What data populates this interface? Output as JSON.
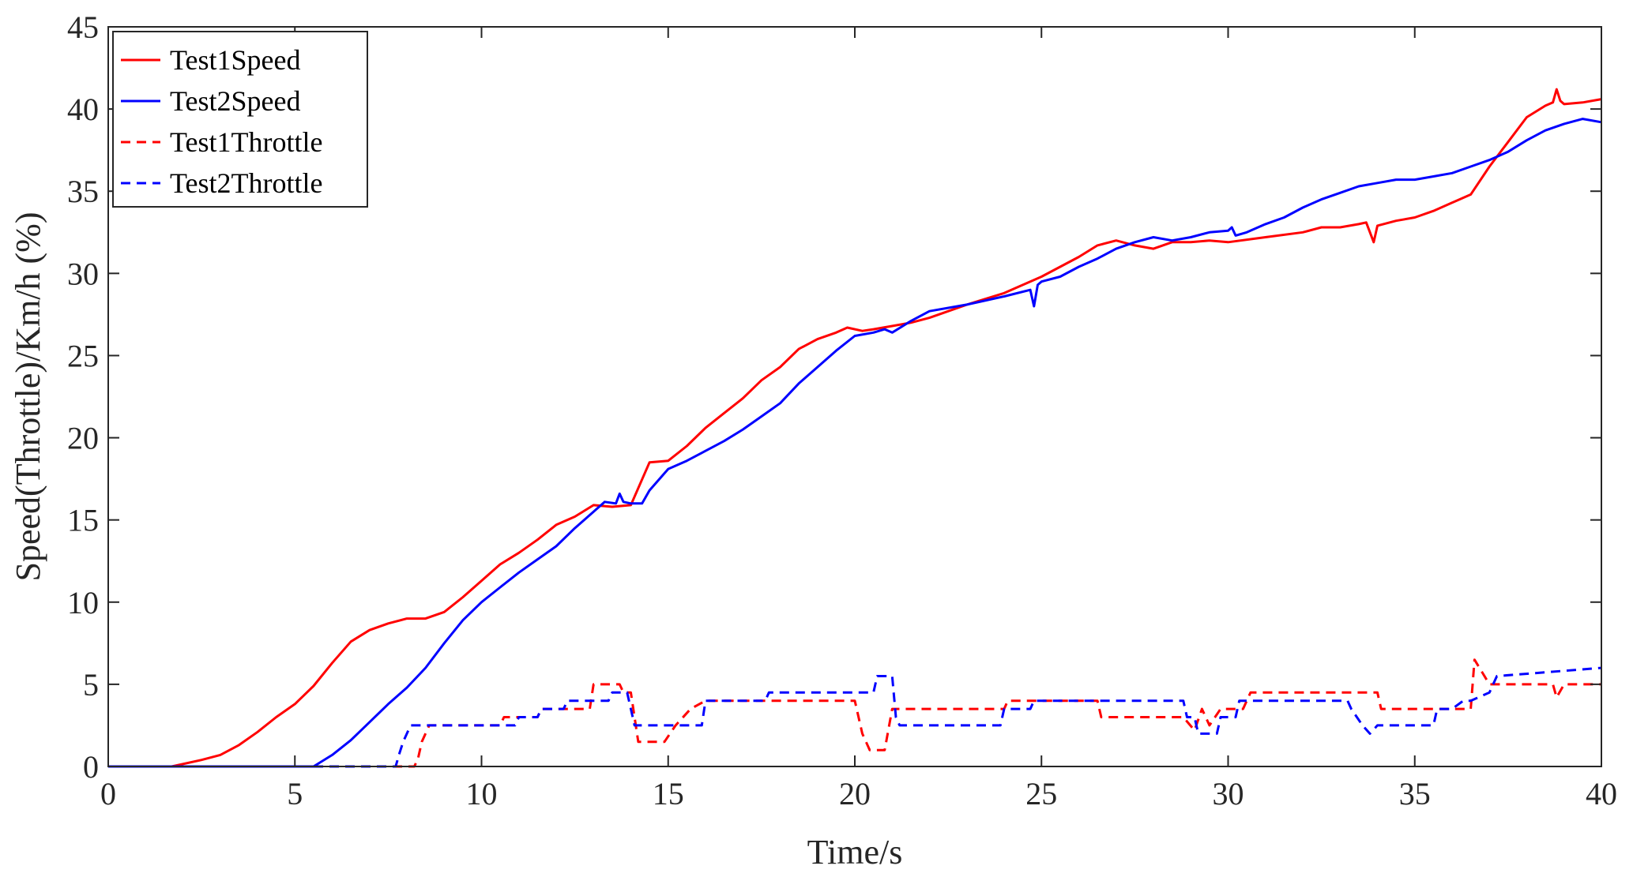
{
  "chart_data": {
    "type": "line",
    "title": "",
    "xlabel": "Time/s",
    "ylabel": "Speed(Throttle)/Km/h (%)",
    "xlim": [
      0,
      40
    ],
    "ylim": [
      0,
      45
    ],
    "xticks": [
      0,
      5,
      10,
      15,
      20,
      25,
      30,
      35,
      40
    ],
    "yticks": [
      0,
      5,
      10,
      15,
      20,
      25,
      30,
      35,
      40,
      45
    ],
    "grid": false,
    "legend_position": "top-left",
    "series": [
      {
        "name": "Test1Speed",
        "color": "#ff0000",
        "style": "solid",
        "x": [
          0,
          1.7,
          2.5,
          3,
          3.5,
          4,
          4.5,
          5,
          5.5,
          6,
          6.5,
          7,
          7.5,
          8,
          8.5,
          9,
          9.5,
          10,
          10.5,
          11,
          11.5,
          12,
          12.5,
          13,
          13.5,
          14,
          14.5,
          15,
          15.5,
          16,
          16.5,
          17,
          17.5,
          18,
          18.5,
          19,
          19.5,
          19.8,
          20.2,
          20.5,
          21,
          21.5,
          22,
          23,
          24,
          25,
          26,
          26.5,
          27,
          27.5,
          28,
          28.5,
          29,
          29.5,
          30,
          31,
          32,
          32.5,
          33,
          33.5,
          33.7,
          33.9,
          34,
          34.5,
          35,
          35.5,
          36,
          36.5,
          37,
          37.5,
          38,
          38.5,
          38.7,
          38.8,
          38.9,
          39,
          39.5,
          40
        ],
        "values": [
          0,
          0,
          0.4,
          0.7,
          1.3,
          2.1,
          3,
          3.8,
          4.9,
          6.3,
          7.6,
          8.3,
          8.7,
          9,
          9,
          9.4,
          10.3,
          11.3,
          12.3,
          13,
          13.8,
          14.7,
          15.2,
          15.9,
          15.8,
          15.9,
          18.5,
          18.6,
          19.5,
          20.6,
          21.5,
          22.4,
          23.5,
          24.3,
          25.4,
          26,
          26.4,
          26.7,
          26.5,
          26.6,
          26.8,
          27,
          27.3,
          28.1,
          28.8,
          29.8,
          31,
          31.7,
          32,
          31.7,
          31.5,
          31.9,
          31.9,
          32,
          31.9,
          32.2,
          32.5,
          32.8,
          32.8,
          33,
          33.1,
          31.9,
          32.9,
          33.2,
          33.4,
          33.8,
          34.3,
          34.8,
          36.5,
          38,
          39.5,
          40.2,
          40.4,
          41.2,
          40.5,
          40.3,
          40.4,
          40.6
        ]
      },
      {
        "name": "Test2Speed",
        "color": "#0000ff",
        "style": "solid",
        "x": [
          0,
          5.5,
          6,
          6.5,
          7,
          7.5,
          8,
          8.5,
          9,
          9.5,
          10,
          10.5,
          11,
          11.5,
          12,
          12.5,
          13,
          13.3,
          13.6,
          13.7,
          13.8,
          14,
          14.3,
          14.5,
          15,
          15.5,
          16,
          16.5,
          17,
          17.5,
          18,
          18.5,
          19,
          19.5,
          20,
          20.5,
          20.8,
          21,
          21.5,
          22,
          23,
          24,
          24.7,
          24.8,
          24.9,
          25,
          25.5,
          26,
          26.5,
          27,
          27.5,
          28,
          28.5,
          29,
          29.5,
          30,
          30.1,
          30.2,
          30.5,
          31,
          31.5,
          32,
          32.5,
          33,
          33.5,
          34,
          34.5,
          35,
          35.5,
          36,
          36.5,
          37,
          37.5,
          38,
          38.5,
          39,
          39.5,
          40
        ],
        "values": [
          0,
          0,
          0.7,
          1.6,
          2.7,
          3.8,
          4.8,
          6,
          7.5,
          8.9,
          10,
          10.9,
          11.8,
          12.6,
          13.4,
          14.5,
          15.5,
          16.1,
          16,
          16.6,
          16.1,
          16,
          16,
          16.8,
          18.1,
          18.6,
          19.2,
          19.8,
          20.5,
          21.3,
          22.1,
          23.3,
          24.3,
          25.3,
          26.2,
          26.4,
          26.6,
          26.4,
          27.1,
          27.7,
          28.1,
          28.6,
          29,
          28,
          29.3,
          29.5,
          29.8,
          30.4,
          30.9,
          31.5,
          31.9,
          32.2,
          32,
          32.2,
          32.5,
          32.6,
          32.8,
          32.3,
          32.5,
          33,
          33.4,
          34,
          34.5,
          34.9,
          35.3,
          35.5,
          35.7,
          35.7,
          35.9,
          36.1,
          36.5,
          36.9,
          37.4,
          38.1,
          38.7,
          39.1,
          39.4,
          39.2
        ]
      },
      {
        "name": "Test1Throttle",
        "color": "#ff0000",
        "style": "dashed",
        "x": [
          0,
          8.2,
          8.3,
          8.4,
          8.5,
          8.6,
          10.5,
          10.6,
          11.5,
          11.6,
          12.9,
          13,
          13.7,
          13.8,
          14,
          14.2,
          14.5,
          14.9,
          15.2,
          15.6,
          16,
          20,
          20.2,
          20.4,
          20.8,
          21,
          21.3,
          24,
          24.1,
          26.5,
          26.6,
          28.8,
          29.1,
          29.3,
          29.5,
          29.8,
          30.4,
          30.6,
          34,
          34.1,
          34.4,
          36.5,
          36.6,
          37,
          38.7,
          38.8,
          39,
          40
        ],
        "values": [
          0,
          0,
          0.5,
          1.5,
          2,
          2.5,
          2.5,
          3,
          3,
          3.5,
          3.5,
          5,
          5,
          4.5,
          4.5,
          1.5,
          1.5,
          1.5,
          2.5,
          3.5,
          4,
          4,
          2,
          1,
          1,
          3.5,
          3.5,
          3.5,
          4,
          4,
          3,
          3,
          2.2,
          3.5,
          2.5,
          3.5,
          3.5,
          4.5,
          4.5,
          3.5,
          3.5,
          3.5,
          6.5,
          5,
          5,
          4.2,
          5,
          5
        ]
      },
      {
        "name": "Test2Throttle",
        "color": "#0000ff",
        "style": "dashed",
        "x": [
          0,
          7.7,
          7.8,
          7.9,
          8,
          8.1,
          10.9,
          11,
          11.5,
          11.6,
          12.2,
          12.3,
          13.4,
          13.5,
          13.9,
          14,
          14.1,
          14.2,
          15.9,
          16,
          17.6,
          17.7,
          20.5,
          20.6,
          21,
          21.1,
          21.2,
          23.9,
          24,
          24.7,
          24.8,
          25.1,
          25.2,
          28.8,
          28.9,
          29.1,
          29.2,
          29.7,
          29.8,
          30.2,
          30.3,
          33.2,
          33.3,
          33.6,
          33.8,
          34,
          35.5,
          35.6,
          36,
          36.3,
          36.5,
          37,
          37.2,
          40
        ],
        "values": [
          0,
          0,
          0.8,
          1.5,
          2,
          2.5,
          2.5,
          3,
          3,
          3.5,
          3.5,
          4,
          4,
          4.5,
          4.5,
          3.5,
          2.5,
          2.5,
          2.5,
          4,
          4,
          4.5,
          4.5,
          5.5,
          5.5,
          3,
          2.5,
          2.5,
          3.5,
          3.5,
          4,
          4,
          4,
          4,
          3,
          3,
          2,
          2,
          3,
          3,
          4,
          4,
          3.5,
          2.5,
          2,
          2.5,
          2.5,
          3.5,
          3.5,
          4,
          4,
          4.5,
          5.5,
          6
        ]
      }
    ]
  }
}
